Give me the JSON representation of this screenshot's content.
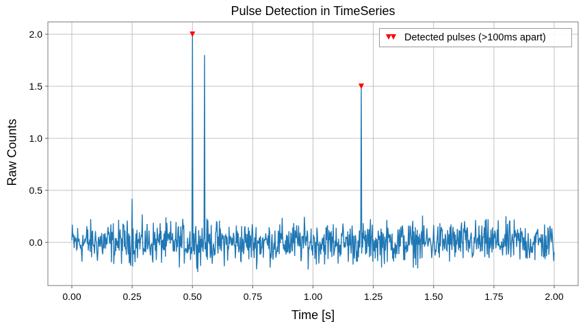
{
  "chart_data": {
    "type": "line",
    "title": "Pulse Detection in TimeSeries",
    "xlabel": "Time [s]",
    "ylabel": "Raw Counts",
    "xlim": [
      -0.1,
      2.1
    ],
    "ylim": [
      -0.42,
      2.12
    ],
    "grid": true,
    "x_ticks": [
      "0.00",
      "0.25",
      "0.50",
      "0.75",
      "1.00",
      "1.25",
      "1.50",
      "1.75",
      "2.00"
    ],
    "y_ticks": [
      "0.0",
      "0.5",
      "1.0",
      "1.5",
      "2.0"
    ],
    "series": [
      {
        "name": "TimeSeries",
        "color": "#1f77b4",
        "description": "Noise around 0 (approx -0.3 to 0.3) from 0 to 2 s with spikes",
        "spikes": [
          {
            "x": 0.25,
            "y": 0.42
          },
          {
            "x": 0.5,
            "y": 2.0
          },
          {
            "x": 0.55,
            "y": 1.8
          },
          {
            "x": 1.2,
            "y": 1.5
          }
        ]
      },
      {
        "name": "Detected pulses (>100ms apart)",
        "color": "#ff0000",
        "marker": "triangle-down",
        "points": [
          {
            "x": 0.5,
            "y": 2.0
          },
          {
            "x": 1.2,
            "y": 1.5
          }
        ]
      }
    ],
    "legend_position": "upper right"
  },
  "legend": {
    "label": "Detected pulses (>100ms apart)"
  }
}
